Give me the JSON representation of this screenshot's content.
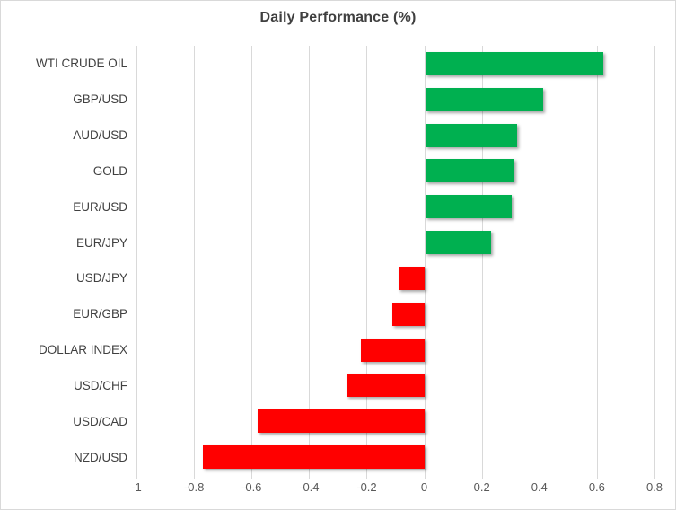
{
  "chart_data": {
    "type": "bar",
    "orientation": "horizontal",
    "title": "Daily Performance (%)",
    "categories": [
      "WTI CRUDE OIL",
      "GBP/USD",
      "AUD/USD",
      "GOLD",
      "EUR/USD",
      "EUR/JPY",
      "USD/JPY",
      "EUR/GBP",
      "DOLLAR INDEX",
      "USD/CHF",
      "USD/CAD",
      "NZD/USD"
    ],
    "values": [
      0.62,
      0.41,
      0.32,
      0.31,
      0.3,
      0.23,
      -0.09,
      -0.11,
      -0.22,
      -0.27,
      -0.58,
      -0.77
    ],
    "xlabel": "",
    "ylabel": "",
    "xlim": [
      -1,
      0.8
    ],
    "xticks": [
      -1,
      -0.8,
      -0.6,
      -0.4,
      -0.2,
      0,
      0.2,
      0.4,
      0.6,
      0.8
    ],
    "xtick_labels": [
      "-1",
      "-0.8",
      "-0.6",
      "-0.4",
      "-0.2",
      "0",
      "0.2",
      "0.4",
      "0.6",
      "0.8"
    ],
    "grid": true,
    "legend": false,
    "colors": {
      "positive": "#00B050",
      "negative": "#FF0000",
      "gridline": "#D9D9D9",
      "border": "#D9D9D9",
      "title_text": "#3F3F3F",
      "category_text": "#404040",
      "tick_text": "#595959",
      "background": "#FFFFFF"
    }
  }
}
